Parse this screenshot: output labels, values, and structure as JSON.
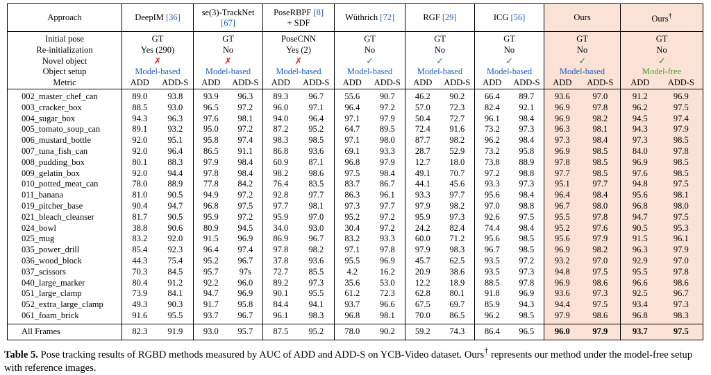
{
  "table": {
    "approach": "Approach",
    "methods": [
      {
        "name": "DeepIM",
        "cite": "[36]"
      },
      {
        "name": "se(3)-TrackNet",
        "cite": "[67]"
      },
      {
        "name": "PoseRBPF",
        "cite": "[8]",
        "suffix": "+ SDF"
      },
      {
        "name": "Wüthrich",
        "cite": "[72]"
      },
      {
        "name": "RGF",
        "cite": "[29]"
      },
      {
        "name": "ICG",
        "cite": "[56]"
      },
      {
        "name": "Ours"
      },
      {
        "name": "Ours",
        "sup": "†"
      }
    ],
    "settings": [
      {
        "label": "Initial pose",
        "values": [
          "GT",
          "GT",
          "PoseCNN",
          "GT",
          "GT",
          "GT",
          "GT",
          "GT"
        ]
      },
      {
        "label": "Re-initialization",
        "values": [
          "Yes (290)",
          "No",
          "Yes (2)",
          "No",
          "No",
          "No",
          "No",
          "No"
        ]
      },
      {
        "label": "Novel object",
        "values": [
          "✗",
          "✗",
          "✗",
          "✓",
          "✓",
          "✓",
          "✓",
          "✓"
        ],
        "colors": [
          "#d62020",
          "#d62020",
          "#d62020",
          "#1f8a1f",
          "#1f8a1f",
          "#1f8a1f",
          "#1f8a1f",
          "#1f8a1f"
        ]
      },
      {
        "label": "Object setup",
        "values": [
          "Model-based",
          "Model-based",
          "Model-based",
          "Model-based",
          "Model-based",
          "Model-based",
          "Model-based",
          "Model-free"
        ],
        "colors": [
          "#1f5fbf",
          "#1f5fbf",
          "#1f5fbf",
          "#1f5fbf",
          "#1f5fbf",
          "#1f5fbf",
          "#1f5fbf",
          "#4aa02c"
        ]
      }
    ],
    "metric": {
      "label": "Metric",
      "values": [
        "ADD",
        "ADD-S"
      ]
    },
    "rows": [
      {
        "object": "002_master_chef_can",
        "values": [
          "89.0",
          "93.8",
          "93.9",
          "96.3",
          "89.3",
          "96.7",
          "55.6",
          "90.7",
          "46.2",
          "90.2",
          "66.4",
          "89.7",
          "93.6",
          "97.0",
          "91.2",
          "96.9"
        ]
      },
      {
        "object": "003_cracker_box",
        "values": [
          "88.5",
          "93.0",
          "96.5",
          "97.2",
          "96.0",
          "97.1",
          "96.4",
          "97.2",
          "57.0",
          "72.3",
          "82.4",
          "92.1",
          "96.9",
          "97.8",
          "96.2",
          "97.5"
        ]
      },
      {
        "object": "004_sugar_box",
        "values": [
          "94.3",
          "96.3",
          "97.6",
          "98.1",
          "94.0",
          "96.4",
          "97.1",
          "97.9",
          "50.4",
          "72.7",
          "96.1",
          "98.4",
          "96.9",
          "98.2",
          "94.5",
          "97.4"
        ]
      },
      {
        "object": "005_tomato_soup_can",
        "values": [
          "89.1",
          "93.2",
          "95.0",
          "97.2",
          "87.2",
          "95.2",
          "64.7",
          "89.5",
          "72.4",
          "91.6",
          "73.2",
          "97.3",
          "96.3",
          "98.1",
          "94.3",
          "97.9"
        ]
      },
      {
        "object": "006_mustard_bottle",
        "values": [
          "92.0",
          "95.1",
          "95.8",
          "97.4",
          "98.3",
          "98.5",
          "97.1",
          "98.0",
          "87.7",
          "98.2",
          "96.2",
          "98.4",
          "97.3",
          "98.4",
          "97.3",
          "98.5"
        ]
      },
      {
        "object": "007_tuna_fish_can",
        "values": [
          "92.0",
          "96.4",
          "86.5",
          "91.1",
          "86.8",
          "93.6",
          "69.1",
          "93.3",
          "28.7",
          "52.9",
          "73.2",
          "95.8",
          "96.9",
          "98.5",
          "84.0",
          "97.8"
        ]
      },
      {
        "object": "008_pudding_box",
        "values": [
          "80.1",
          "88.3",
          "97.9",
          "98.4",
          "60.9",
          "87.1",
          "96.8",
          "97.9",
          "12.7",
          "18.0",
          "73.8",
          "88.9",
          "97.8",
          "98.5",
          "96.9",
          "98.5"
        ]
      },
      {
        "object": "009_gelatin_box",
        "values": [
          "92.0",
          "94.4",
          "97.8",
          "98.4",
          "98.2",
          "98.6",
          "97.5",
          "98.4",
          "49.1",
          "70.7",
          "97.2",
          "98.8",
          "97.7",
          "98.5",
          "97.6",
          "98.5"
        ]
      },
      {
        "object": "010_potted_meat_can",
        "values": [
          "78.0",
          "88.9",
          "77.8",
          "84.2",
          "76.4",
          "83.5",
          "83.7",
          "86.7",
          "44.1",
          "45.6",
          "93.3",
          "97.3",
          "95.1",
          "97.7",
          "94.8",
          "97.5"
        ]
      },
      {
        "object": "011_banana",
        "values": [
          "81.0",
          "90.5",
          "94.9",
          "97.2",
          "92.8",
          "97.7",
          "86.3",
          "96.1",
          "93.3",
          "97.7",
          "95.6",
          "98.4",
          "96.4",
          "98.4",
          "95.6",
          "98.1"
        ]
      },
      {
        "object": "019_pitcher_base",
        "values": [
          "90.4",
          "94.7",
          "96.8",
          "97.5",
          "97.7",
          "98.1",
          "97.3",
          "97.7",
          "97.9",
          "98.2",
          "97.0",
          "98.8",
          "96.7",
          "98.0",
          "96.8",
          "98.0"
        ]
      },
      {
        "object": "021_bleach_cleanser",
        "values": [
          "81.7",
          "90.5",
          "95.9",
          "97.2",
          "95.9",
          "97.0",
          "95.2",
          "97.2",
          "95.9",
          "97.3",
          "92.6",
          "97.5",
          "95.5",
          "97.8",
          "94.7",
          "97.5"
        ]
      },
      {
        "object": "024_bowl",
        "values": [
          "38.8",
          "90.6",
          "80.9",
          "94.5",
          "34.0",
          "93.0",
          "30.4",
          "97.2",
          "24.2",
          "82.4",
          "74.4",
          "98.4",
          "95.2",
          "97.6",
          "90.5",
          "95.3"
        ]
      },
      {
        "object": "025_mug",
        "values": [
          "83.2",
          "92.0",
          "91.5",
          "96.9",
          "86.9",
          "96.7",
          "83.2",
          "93.3",
          "60.0",
          "71.2",
          "95.6",
          "98.5",
          "95.6",
          "97.9",
          "91.5",
          "96.1"
        ]
      },
      {
        "object": "035_power_drill",
        "values": [
          "85.4",
          "92.3",
          "96.4",
          "97.4",
          "97.8",
          "98.2",
          "97.1",
          "97.8",
          "97.9",
          "98.3",
          "96.7",
          "98.5",
          "96.9",
          "98.2",
          "96.3",
          "97.9"
        ]
      },
      {
        "object": "036_wood_block",
        "values": [
          "44.3",
          "75.4",
          "95.2",
          "96.7",
          "37.8",
          "93.6",
          "95.5",
          "96.9",
          "45.7",
          "62.5",
          "93.5",
          "97.2",
          "93.2",
          "97.0",
          "92.9",
          "97.0"
        ]
      },
      {
        "object": "037_scissors",
        "values": [
          "70.3",
          "84.5",
          "95.7",
          "97s",
          "72.7",
          "85.5",
          "4.2",
          "16.2",
          "20.9",
          "38.6",
          "93.5",
          "97.3",
          "94.8",
          "97.5",
          "95.5",
          "97.8"
        ]
      },
      {
        "object": "040_large_marker",
        "values": [
          "80.4",
          "91.2",
          "92.2",
          "96.0",
          "89.2",
          "97.3",
          "35.6",
          "53.0",
          "12.2",
          "18.9",
          "88.5",
          "97.8",
          "96.9",
          "98.6",
          "96.6",
          "98.6"
        ]
      },
      {
        "object": "051_large_clamp",
        "values": [
          "73.9",
          "84.1",
          "94.7",
          "96.9",
          "90.1",
          "95.5",
          "61.2",
          "72.3",
          "62.8",
          "80.1",
          "91.8",
          "96.9",
          "93.6",
          "97.3",
          "92.5",
          "96.7"
        ]
      },
      {
        "object": "052_extra_large_clamp",
        "values": [
          "49.3",
          "90.3",
          "91.7",
          "95.8",
          "84.4",
          "94.1",
          "93.7",
          "96.6",
          "67.5",
          "69.7",
          "85.9",
          "94.3",
          "94.4",
          "97.5",
          "93.4",
          "97.3"
        ]
      },
      {
        "object": "061_foam_brick",
        "values": [
          "91.6",
          "95.5",
          "93.7",
          "96.7",
          "96.1",
          "98.3",
          "96.8",
          "98.1",
          "70.0",
          "86.5",
          "96.2",
          "98.5",
          "97.9",
          "98.6",
          "96.8",
          "98.3"
        ]
      }
    ],
    "total": {
      "label": "All Frames",
      "values": [
        "82.3",
        "91.9",
        "93.0",
        "95.7",
        "87.5",
        "95.2",
        "78.0",
        "90.2",
        "59.2",
        "74.3",
        "86.4",
        "96.5",
        "96.0",
        "97.9",
        "93.7",
        "97.5"
      ],
      "bold_columns": [
        12,
        13,
        14,
        15
      ]
    }
  },
  "caption": {
    "label": "Table 5.",
    "text": "Pose tracking results of RGBD methods measured by AUC of ADD and ADD-S on YCB-Video dataset.",
    "ours": "Ours",
    "sup": "†",
    "rest": "represents our method under the model-free setup with reference images."
  }
}
